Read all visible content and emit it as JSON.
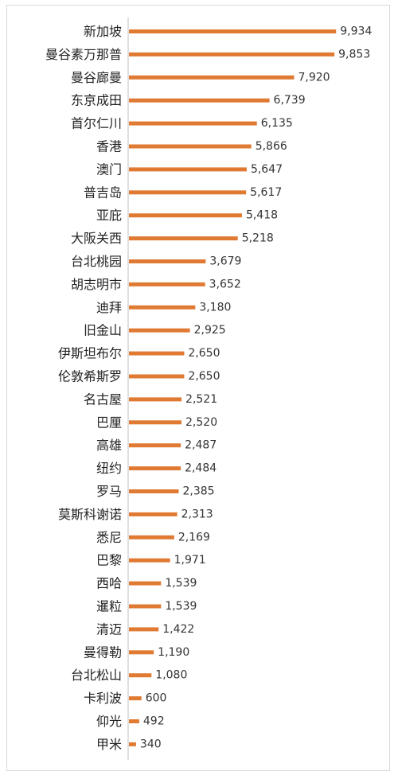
{
  "chart_data": {
    "type": "bar",
    "orientation": "horizontal",
    "categories": [
      "新加坡",
      "曼谷素万那普",
      "曼谷廊曼",
      "东京成田",
      "首尔仁川",
      "香港",
      "澳门",
      "普吉岛",
      "亚庇",
      "大阪关西",
      "台北桃园",
      "胡志明市",
      "迪拜",
      "旧金山",
      "伊斯坦布尔",
      "伦敦希斯罗",
      "名古屋",
      "巴厘",
      "高雄",
      "纽约",
      "罗马",
      "莫斯科谢诺",
      "悉尼",
      "巴黎",
      "西哈",
      "暹粒",
      "清迈",
      "曼得勒",
      "台北松山",
      "卡利波",
      "仰光",
      "甲米"
    ],
    "values": [
      9934,
      9853,
      7920,
      6739,
      6135,
      5866,
      5647,
      5617,
      5418,
      5218,
      3679,
      3652,
      3180,
      2925,
      2650,
      2650,
      2521,
      2520,
      2487,
      2484,
      2385,
      2313,
      2169,
      1971,
      1539,
      1539,
      1422,
      1190,
      1080,
      600,
      492,
      340
    ],
    "value_labels": [
      "9,934",
      "9,853",
      "7,920",
      "6,739",
      "6,135",
      "5,866",
      "5,647",
      "5,617",
      "5,418",
      "5,218",
      "3,679",
      "3,652",
      "3,180",
      "2,925",
      "2,650",
      "2,650",
      "2,521",
      "2,520",
      "2,487",
      "2,484",
      "2,385",
      "2,313",
      "2,169",
      "1,971",
      "1,539",
      "1,539",
      "1,422",
      "1,190",
      "1,080",
      "600",
      "492",
      "340"
    ],
    "xlim": [
      0,
      10000
    ],
    "grid": false,
    "bar_color": "#E07A33",
    "axis_color": "#bfbfbf"
  }
}
